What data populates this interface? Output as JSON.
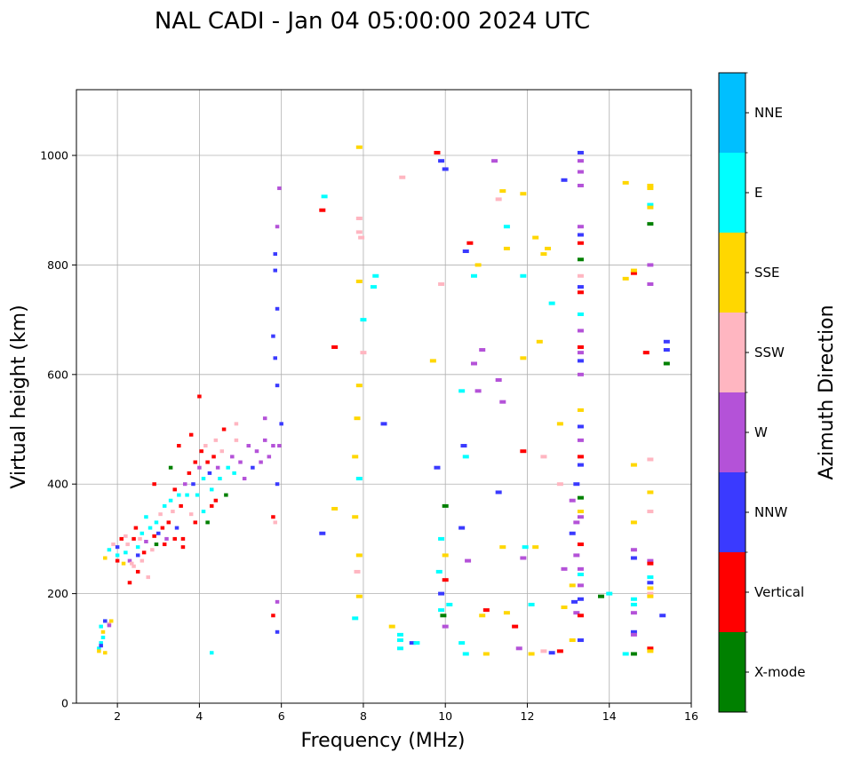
{
  "chart_data": {
    "type": "scatter",
    "title": "NAL CADI - Jan 04 05:00:00 2024 UTC",
    "xlabel": "Frequency (MHz)",
    "ylabel": "Virtual height (km)",
    "xlim": [
      1,
      16
    ],
    "ylim": [
      0,
      1120
    ],
    "xticks": [
      2,
      4,
      6,
      8,
      10,
      12,
      14,
      16
    ],
    "yticks": [
      0,
      200,
      400,
      600,
      800,
      1000
    ],
    "grid": true,
    "colorbar": {
      "label": "Azimuth Direction",
      "categories": [
        "X-mode",
        "Vertical",
        "NNW",
        "W",
        "SSW",
        "SSE",
        "E",
        "NNE"
      ],
      "colors": [
        "#008000",
        "#ff0000",
        "#3a3aff",
        "#b452d8",
        "#ffb6c1",
        "#ffd700",
        "#00ffff",
        "#00bfff"
      ]
    },
    "points": [
      [
        1.55,
        100,
        6
      ],
      [
        1.6,
        110,
        6
      ],
      [
        1.65,
        120,
        6
      ],
      [
        1.6,
        140,
        6
      ],
      [
        1.7,
        150,
        6
      ],
      [
        1.8,
        145,
        4
      ],
      [
        1.55,
        95,
        5
      ],
      [
        1.65,
        130,
        5
      ],
      [
        1.7,
        150,
        2
      ],
      [
        1.85,
        150,
        5
      ],
      [
        1.6,
        105,
        2
      ],
      [
        1.7,
        92,
        5
      ],
      [
        1.8,
        142,
        3
      ],
      [
        1.7,
        265,
        5
      ],
      [
        1.8,
        280,
        6
      ],
      [
        1.9,
        290,
        4
      ],
      [
        2.0,
        270,
        6
      ],
      [
        2.0,
        285,
        2
      ],
      [
        2.1,
        300,
        1
      ],
      [
        2.2,
        275,
        6
      ],
      [
        2.25,
        290,
        4
      ],
      [
        2.3,
        260,
        3
      ],
      [
        2.35,
        255,
        4
      ],
      [
        2.4,
        300,
        1
      ],
      [
        2.5,
        285,
        6
      ],
      [
        2.5,
        270,
        2
      ],
      [
        2.55,
        300,
        4
      ],
      [
        2.6,
        310,
        6
      ],
      [
        2.65,
        275,
        1
      ],
      [
        2.7,
        295,
        3
      ],
      [
        2.8,
        320,
        6
      ],
      [
        2.85,
        280,
        4
      ],
      [
        2.9,
        305,
        1
      ],
      [
        2.95,
        330,
        6
      ],
      [
        3.0,
        310,
        2
      ],
      [
        3.05,
        345,
        4
      ],
      [
        3.1,
        320,
        1
      ],
      [
        3.15,
        360,
        6
      ],
      [
        3.2,
        300,
        3
      ],
      [
        3.25,
        330,
        1
      ],
      [
        3.3,
        370,
        6
      ],
      [
        3.35,
        350,
        4
      ],
      [
        3.4,
        390,
        1
      ],
      [
        3.45,
        320,
        2
      ],
      [
        3.5,
        380,
        6
      ],
      [
        3.55,
        360,
        1
      ],
      [
        3.6,
        300,
        1
      ],
      [
        3.65,
        400,
        3
      ],
      [
        3.7,
        380,
        6
      ],
      [
        3.75,
        420,
        1
      ],
      [
        3.8,
        345,
        4
      ],
      [
        3.85,
        400,
        2
      ],
      [
        3.9,
        440,
        1
      ],
      [
        3.95,
        380,
        6
      ],
      [
        4.0,
        430,
        3
      ],
      [
        4.05,
        460,
        1
      ],
      [
        4.1,
        410,
        6
      ],
      [
        4.15,
        470,
        4
      ],
      [
        4.2,
        440,
        1
      ],
      [
        4.25,
        420,
        2
      ],
      [
        4.3,
        390,
        6
      ],
      [
        4.35,
        450,
        1
      ],
      [
        4.4,
        480,
        4
      ],
      [
        4.45,
        430,
        3
      ],
      [
        4.5,
        410,
        6
      ],
      [
        4.55,
        460,
        4
      ],
      [
        4.6,
        500,
        1
      ],
      [
        4.65,
        380,
        0
      ],
      [
        4.7,
        430,
        6
      ],
      [
        4.8,
        450,
        3
      ],
      [
        4.85,
        420,
        6
      ],
      [
        4.9,
        480,
        4
      ],
      [
        5.0,
        440,
        3
      ],
      [
        5.1,
        410,
        3
      ],
      [
        5.2,
        470,
        3
      ],
      [
        5.3,
        430,
        2
      ],
      [
        5.4,
        460,
        3
      ],
      [
        5.5,
        440,
        3
      ],
      [
        5.6,
        480,
        3
      ],
      [
        5.7,
        450,
        3
      ],
      [
        5.8,
        470,
        3
      ],
      [
        5.6,
        520,
        3
      ],
      [
        4.9,
        510,
        4
      ],
      [
        3.8,
        490,
        1
      ],
      [
        4.0,
        560,
        1
      ],
      [
        3.5,
        470,
        1
      ],
      [
        3.3,
        430,
        0
      ],
      [
        2.9,
        400,
        1
      ],
      [
        2.5,
        240,
        1
      ],
      [
        2.6,
        260,
        4
      ],
      [
        2.3,
        220,
        1
      ],
      [
        2.4,
        250,
        4
      ],
      [
        2.15,
        255,
        5
      ],
      [
        2.75,
        230,
        4
      ],
      [
        2.0,
        260,
        1
      ],
      [
        2.2,
        305,
        4
      ],
      [
        2.45,
        320,
        1
      ],
      [
        2.7,
        340,
        6
      ],
      [
        2.95,
        290,
        0
      ],
      [
        3.15,
        290,
        1
      ],
      [
        3.4,
        300,
        1
      ],
      [
        3.6,
        285,
        1
      ],
      [
        3.9,
        330,
        1
      ],
      [
        4.1,
        350,
        6
      ],
      [
        4.2,
        330,
        0
      ],
      [
        4.3,
        360,
        1
      ],
      [
        4.4,
        370,
        1
      ],
      [
        4.3,
        92,
        6
      ],
      [
        5.8,
        160,
        1
      ],
      [
        5.85,
        330,
        4
      ],
      [
        5.9,
        400,
        2
      ],
      [
        5.95,
        470,
        3
      ],
      [
        6.0,
        510,
        2
      ],
      [
        5.9,
        580,
        2
      ],
      [
        5.85,
        630,
        2
      ],
      [
        5.8,
        670,
        2
      ],
      [
        5.9,
        720,
        2
      ],
      [
        5.85,
        790,
        2
      ],
      [
        5.9,
        870,
        3
      ],
      [
        5.95,
        940,
        3
      ],
      [
        5.85,
        820,
        2
      ],
      [
        5.9,
        185,
        3
      ],
      [
        5.9,
        130,
        2
      ],
      [
        5.8,
        340,
        1
      ],
      [
        7.05,
        925,
        6
      ],
      [
        7.0,
        900,
        1
      ],
      [
        7.3,
        650,
        1
      ],
      [
        7.0,
        310,
        2
      ],
      [
        7.3,
        355,
        5
      ],
      [
        7.9,
        1015,
        5
      ],
      [
        7.9,
        885,
        4
      ],
      [
        7.9,
        860,
        4
      ],
      [
        7.95,
        850,
        4
      ],
      [
        7.9,
        770,
        5
      ],
      [
        8.0,
        700,
        6
      ],
      [
        8.0,
        640,
        4
      ],
      [
        7.9,
        580,
        5
      ],
      [
        7.85,
        520,
        5
      ],
      [
        7.8,
        450,
        5
      ],
      [
        7.9,
        410,
        6
      ],
      [
        7.8,
        340,
        5
      ],
      [
        7.9,
        270,
        5
      ],
      [
        7.85,
        240,
        4
      ],
      [
        7.9,
        195,
        5
      ],
      [
        7.8,
        155,
        6
      ],
      [
        8.3,
        780,
        6
      ],
      [
        8.25,
        760,
        6
      ],
      [
        8.5,
        510,
        2
      ],
      [
        8.7,
        140,
        5
      ],
      [
        8.9,
        115,
        6
      ],
      [
        8.9,
        100,
        6
      ],
      [
        8.9,
        125,
        6
      ],
      [
        8.95,
        960,
        4
      ],
      [
        9.2,
        110,
        2
      ],
      [
        9.3,
        110,
        6
      ],
      [
        9.8,
        1005,
        1
      ],
      [
        9.9,
        990,
        2
      ],
      [
        10.0,
        975,
        2
      ],
      [
        9.9,
        765,
        4
      ],
      [
        9.7,
        625,
        5
      ],
      [
        9.8,
        430,
        2
      ],
      [
        10.0,
        360,
        0
      ],
      [
        9.9,
        300,
        6
      ],
      [
        10.0,
        270,
        5
      ],
      [
        9.85,
        240,
        6
      ],
      [
        10.0,
        225,
        1
      ],
      [
        9.9,
        200,
        2
      ],
      [
        10.1,
        180,
        6
      ],
      [
        9.95,
        160,
        0
      ],
      [
        9.9,
        170,
        6
      ],
      [
        10.0,
        140,
        3
      ],
      [
        10.4,
        570,
        6
      ],
      [
        10.45,
        470,
        2
      ],
      [
        10.5,
        450,
        6
      ],
      [
        10.4,
        320,
        2
      ],
      [
        10.55,
        260,
        3
      ],
      [
        10.4,
        110,
        6
      ],
      [
        10.5,
        90,
        6
      ],
      [
        10.6,
        840,
        1
      ],
      [
        10.5,
        825,
        2
      ],
      [
        10.7,
        780,
        6
      ],
      [
        10.8,
        800,
        5
      ],
      [
        10.7,
        620,
        3
      ],
      [
        10.9,
        645,
        3
      ],
      [
        10.8,
        570,
        3
      ],
      [
        11.0,
        170,
        1
      ],
      [
        10.9,
        160,
        5
      ],
      [
        11.0,
        90,
        5
      ],
      [
        11.2,
        990,
        3
      ],
      [
        11.3,
        920,
        4
      ],
      [
        11.4,
        935,
        5
      ],
      [
        11.5,
        870,
        6
      ],
      [
        11.5,
        830,
        5
      ],
      [
        11.3,
        590,
        3
      ],
      [
        11.4,
        550,
        3
      ],
      [
        11.3,
        385,
        2
      ],
      [
        11.4,
        285,
        5
      ],
      [
        11.5,
        165,
        5
      ],
      [
        11.7,
        140,
        1
      ],
      [
        11.8,
        100,
        3
      ],
      [
        11.9,
        930,
        5
      ],
      [
        11.9,
        780,
        6
      ],
      [
        11.9,
        630,
        5
      ],
      [
        11.9,
        460,
        1
      ],
      [
        11.9,
        265,
        3
      ],
      [
        11.95,
        285,
        6
      ],
      [
        12.1,
        180,
        6
      ],
      [
        12.1,
        90,
        5
      ],
      [
        12.2,
        285,
        5
      ],
      [
        12.2,
        850,
        5
      ],
      [
        12.4,
        820,
        5
      ],
      [
        12.5,
        830,
        5
      ],
      [
        12.3,
        660,
        5
      ],
      [
        12.6,
        730,
        6
      ],
      [
        12.4,
        450,
        4
      ],
      [
        12.4,
        95,
        4
      ],
      [
        12.6,
        92,
        2
      ],
      [
        12.8,
        95,
        1
      ],
      [
        12.9,
        955,
        2
      ],
      [
        12.8,
        510,
        5
      ],
      [
        12.8,
        400,
        4
      ],
      [
        12.9,
        245,
        3
      ],
      [
        12.9,
        175,
        5
      ],
      [
        13.2,
        400,
        2
      ],
      [
        13.1,
        370,
        3
      ],
      [
        13.2,
        330,
        3
      ],
      [
        13.1,
        310,
        2
      ],
      [
        13.2,
        270,
        3
      ],
      [
        13.1,
        215,
        5
      ],
      [
        13.15,
        185,
        2
      ],
      [
        13.2,
        165,
        3
      ],
      [
        13.1,
        115,
        5
      ],
      [
        13.3,
        1005,
        2
      ],
      [
        13.3,
        990,
        3
      ],
      [
        13.3,
        970,
        3
      ],
      [
        13.3,
        945,
        3
      ],
      [
        13.3,
        870,
        3
      ],
      [
        13.3,
        855,
        2
      ],
      [
        13.3,
        840,
        1
      ],
      [
        13.3,
        810,
        0
      ],
      [
        13.3,
        780,
        4
      ],
      [
        13.3,
        760,
        2
      ],
      [
        13.3,
        750,
        1
      ],
      [
        13.3,
        710,
        6
      ],
      [
        13.3,
        680,
        3
      ],
      [
        13.3,
        650,
        1
      ],
      [
        13.3,
        640,
        3
      ],
      [
        13.3,
        625,
        2
      ],
      [
        13.3,
        600,
        3
      ],
      [
        13.3,
        535,
        5
      ],
      [
        13.3,
        505,
        2
      ],
      [
        13.3,
        480,
        3
      ],
      [
        13.3,
        450,
        1
      ],
      [
        13.3,
        435,
        2
      ],
      [
        13.3,
        375,
        0
      ],
      [
        13.3,
        350,
        5
      ],
      [
        13.3,
        340,
        3
      ],
      [
        13.3,
        290,
        1
      ],
      [
        13.3,
        245,
        3
      ],
      [
        13.3,
        235,
        6
      ],
      [
        13.3,
        215,
        3
      ],
      [
        13.3,
        190,
        2
      ],
      [
        13.3,
        160,
        1
      ],
      [
        13.3,
        115,
        2
      ],
      [
        13.8,
        195,
        0
      ],
      [
        14.0,
        200,
        6
      ],
      [
        14.4,
        950,
        5
      ],
      [
        14.6,
        785,
        1
      ],
      [
        14.6,
        790,
        5
      ],
      [
        14.4,
        775,
        5
      ],
      [
        14.6,
        435,
        5
      ],
      [
        14.6,
        330,
        5
      ],
      [
        14.6,
        280,
        3
      ],
      [
        14.6,
        265,
        2
      ],
      [
        14.6,
        190,
        6
      ],
      [
        14.6,
        180,
        6
      ],
      [
        14.6,
        165,
        3
      ],
      [
        14.6,
        130,
        2
      ],
      [
        14.6,
        125,
        3
      ],
      [
        14.4,
        90,
        6
      ],
      [
        14.6,
        90,
        0
      ],
      [
        15.0,
        945,
        5
      ],
      [
        15.0,
        940,
        5
      ],
      [
        15.0,
        910,
        6
      ],
      [
        15.0,
        905,
        5
      ],
      [
        15.0,
        875,
        0
      ],
      [
        15.0,
        800,
        3
      ],
      [
        15.0,
        765,
        3
      ],
      [
        14.9,
        640,
        1
      ],
      [
        15.0,
        445,
        4
      ],
      [
        15.0,
        385,
        5
      ],
      [
        15.0,
        350,
        4
      ],
      [
        15.0,
        260,
        3
      ],
      [
        15.0,
        255,
        1
      ],
      [
        15.0,
        230,
        6
      ],
      [
        15.0,
        220,
        2
      ],
      [
        15.0,
        210,
        5
      ],
      [
        15.0,
        200,
        4
      ],
      [
        15.0,
        195,
        5
      ],
      [
        15.0,
        100,
        1
      ],
      [
        15.0,
        95,
        5
      ],
      [
        15.4,
        660,
        2
      ],
      [
        15.4,
        645,
        2
      ],
      [
        15.4,
        620,
        0
      ],
      [
        15.3,
        160,
        2
      ]
    ]
  }
}
